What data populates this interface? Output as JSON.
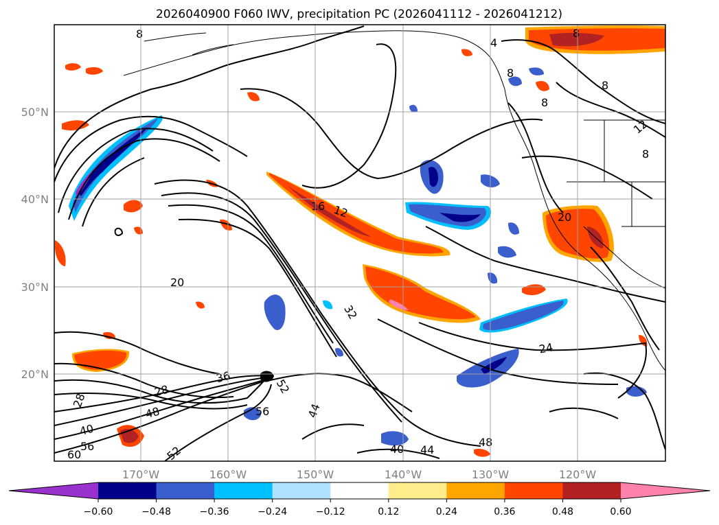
{
  "title": "2026040900 F060 IWV, precipitation PC (2026041112 - 2026041212)",
  "longitude_labels": [
    "170°W",
    "160°W",
    "150°W",
    "140°W",
    "130°W",
    "120°W"
  ],
  "latitude_labels": [
    "50°N",
    "40°N",
    "30°N",
    "20°N"
  ],
  "colorbar": {
    "tick_labels": [
      "−0.60",
      "−0.48",
      "−0.36",
      "−0.24",
      "−0.12",
      "0.12",
      "0.24",
      "0.36",
      "0.48",
      "0.60"
    ],
    "colors": [
      "#9932cc",
      "#00008b",
      "#3a5fcd",
      "#00bfff",
      "#b0e2ff",
      "#ffffff",
      "#ffec8b",
      "#ffa500",
      "#ff4500",
      "#b22222",
      "#ff82ab"
    ]
  },
  "contour_labels": [
    "8",
    "4",
    "8",
    "8",
    "8",
    "8",
    "12",
    "8",
    "16",
    "12",
    "20",
    "20",
    "32",
    "24",
    "36",
    "28",
    "28",
    "48",
    "40",
    "56",
    "60",
    "52",
    "56",
    "44",
    "40",
    "44",
    "48",
    "52"
  ]
}
